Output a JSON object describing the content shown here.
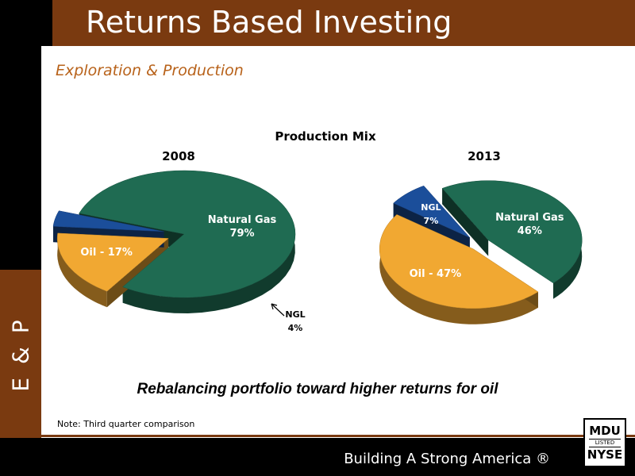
{
  "header": {
    "title": "Returns Based Investing"
  },
  "section": {
    "subtitle": "Exploration & Production",
    "side_label": "E & P"
  },
  "chart_data": {
    "type": "pie",
    "title": "Production Mix",
    "charts": [
      {
        "year": "2008",
        "slices": [
          {
            "label": "Natural Gas",
            "value": 79,
            "display": "79%",
            "color": "#1f6b52"
          },
          {
            "label": "Oil - 17%",
            "value": 17,
            "display": "",
            "color": "#f1a832"
          },
          {
            "label": "NGL",
            "value": 4,
            "display": "4%",
            "color": "#1b4e9a"
          }
        ]
      },
      {
        "year": "2013",
        "slices": [
          {
            "label": "Natural Gas",
            "value": 46,
            "display": "46%",
            "color": "#1f6b52"
          },
          {
            "label": "Oil - 47%",
            "value": 47,
            "display": "",
            "color": "#f1a832"
          },
          {
            "label": "NGL",
            "value": 7,
            "display": "7%",
            "color": "#1b4e9a"
          }
        ]
      }
    ]
  },
  "tagline": "Rebalancing portfolio toward higher returns for oil",
  "note": "Note: Third quarter comparison",
  "footer": {
    "slogan": "Building A Strong America ®"
  },
  "logo": {
    "line1": "MDU",
    "line2": "LISTED",
    "line3": "NYSE"
  }
}
